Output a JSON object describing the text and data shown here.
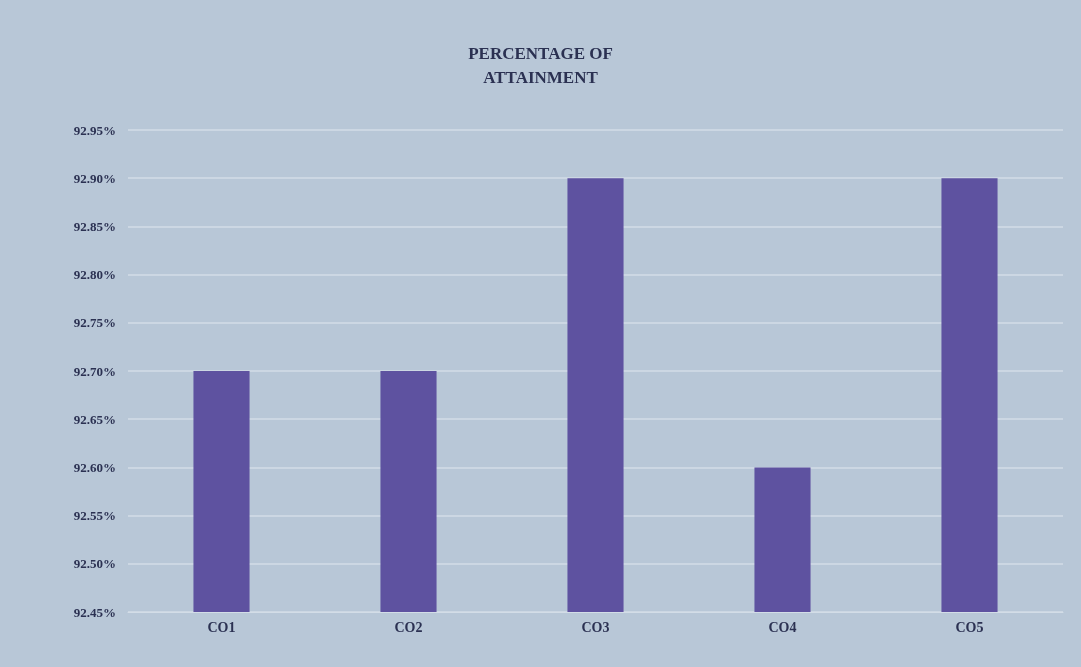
{
  "chart_data": {
    "type": "bar",
    "title": "PERCENTAGE OF\nATTAINMENT",
    "categories": [
      "CO1",
      "CO2",
      "CO3",
      "CO4",
      "CO5"
    ],
    "values": [
      92.7,
      92.7,
      92.9,
      92.6,
      92.9
    ],
    "color": "#5e52a0",
    "ylim": [
      92.45,
      92.95
    ],
    "yticks": [
      {
        "value": 92.45,
        "label": "92.45%"
      },
      {
        "value": 92.5,
        "label": "92.50%"
      },
      {
        "value": 92.55,
        "label": "92.55%"
      },
      {
        "value": 92.6,
        "label": "92.60%"
      },
      {
        "value": 92.65,
        "label": "92.65%"
      },
      {
        "value": 92.7,
        "label": "92.70%"
      },
      {
        "value": 92.75,
        "label": "92.75%"
      },
      {
        "value": 92.8,
        "label": "92.80%"
      },
      {
        "value": 92.85,
        "label": "92.85%"
      },
      {
        "value": 92.9,
        "label": "92.90%"
      },
      {
        "value": 92.95,
        "label": "92.95%"
      }
    ],
    "grid": "y"
  }
}
